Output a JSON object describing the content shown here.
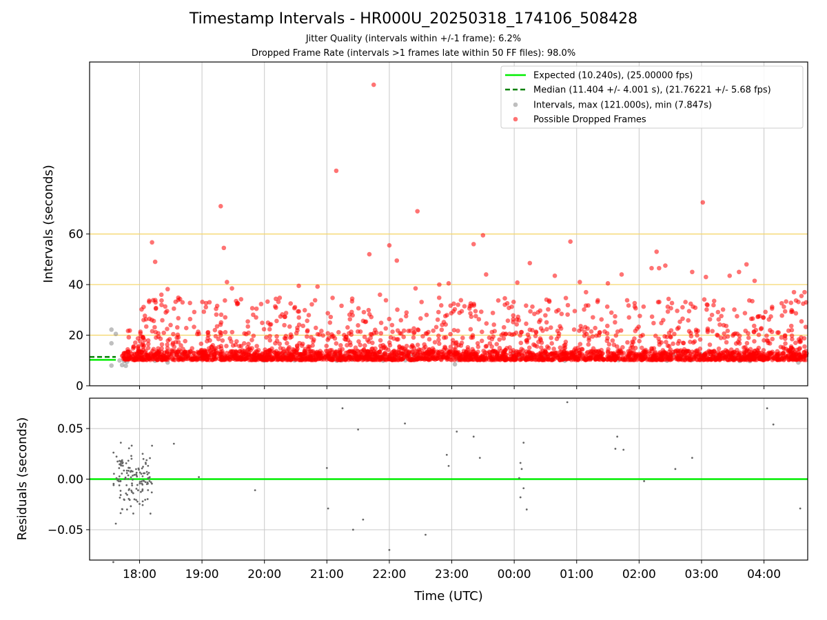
{
  "title": "Timestamp Intervals - HR000U_20250318_174106_508428",
  "subtitle_1": "Jitter Quality (intervals within +/-1 frame): 6.2%",
  "subtitle_2": "Dropped Frame Rate (intervals >1 frames late within 50 FF files): 98.0%",
  "colors": {
    "expected": "#00ee00",
    "median": "#008000",
    "intervals": "#808080",
    "dropped": "#ff0000",
    "threshold": "#f5d76e",
    "grid": "#c8c8c8"
  },
  "chart_data": [
    {
      "type": "scatter",
      "title": "",
      "xlabel": "",
      "ylabel": "Intervals (seconds)",
      "x_unit": "hours since 17:00 UTC on 2025-03-18",
      "xlim": [
        0.2,
        11.7
      ],
      "ylim": [
        0,
        128
      ],
      "yticks": [
        0,
        20,
        40,
        60
      ],
      "ytick_labels": [
        "0",
        "20",
        "40",
        "60"
      ],
      "xticks": [
        1,
        2,
        3,
        4,
        5,
        6,
        7,
        8,
        9,
        10,
        11
      ],
      "grid": true,
      "threshold_lines_y": [
        20,
        40,
        60
      ],
      "legend_position": "top-right",
      "legend": [
        "Expected (10.240s), (25.00000 fps)",
        "Median (11.404 +/- 4.001 s), (21.76221 +/- 5.68 fps)",
        "Intervals, max (121.000s), min (7.847s)",
        "Possible Dropped Frames"
      ],
      "expected_line": {
        "name": "Expected (10.240s), (25.00000 fps)",
        "y": 10.24,
        "x": [
          0.2,
          0.62
        ]
      },
      "median_line": {
        "name": "Median (11.404 +/- 4.001 s), (21.76221 +/- 5.68 fps)",
        "y": 11.404,
        "x": [
          0.2,
          0.62
        ]
      },
      "series": [
        {
          "name": "Intervals, max (121.000s), min (7.847s)",
          "style": "gray-dots",
          "points": [
            [
              0.55,
              22.2
            ],
            [
              0.55,
              16.8
            ],
            [
              0.55,
              8.0
            ],
            [
              0.62,
              20.5
            ],
            [
              0.68,
              10.0
            ],
            [
              0.72,
              8.2
            ],
            [
              0.78,
              7.9
            ],
            [
              0.8,
              9.5
            ],
            [
              1.45,
              9.2
            ],
            [
              6.05,
              8.5
            ],
            [
              11.55,
              9.2
            ],
            [
              3.0,
              10.1
            ],
            [
              6.5,
              10.3
            ]
          ]
        },
        {
          "name": "Possible Dropped Frames",
          "style": "red-dots",
          "points": [
            [
              1.2,
              56.7
            ],
            [
              1.25,
              49.0
            ],
            [
              1.35,
              36.0
            ],
            [
              1.45,
              38.2
            ],
            [
              1.42,
              29.0
            ],
            [
              1.55,
              30.5
            ],
            [
              2.3,
              71.0
            ],
            [
              2.35,
              54.5
            ],
            [
              2.4,
              41.0
            ],
            [
              2.48,
              38.5
            ],
            [
              3.55,
              39.5
            ],
            [
              4.15,
              85.0
            ],
            [
              3.85,
              39.2
            ],
            [
              4.75,
              119.0
            ],
            [
              4.68,
              52.0
            ],
            [
              4.85,
              36.0
            ],
            [
              5.0,
              55.5
            ],
            [
              5.12,
              49.5
            ],
            [
              5.42,
              38.5
            ],
            [
              5.45,
              69.0
            ],
            [
              5.95,
              40.5
            ],
            [
              5.8,
              40.0
            ],
            [
              6.35,
              56.0
            ],
            [
              6.5,
              59.5
            ],
            [
              6.55,
              44.0
            ],
            [
              7.05,
              40.8
            ],
            [
              7.25,
              48.5
            ],
            [
              7.65,
              43.5
            ],
            [
              7.9,
              57.0
            ],
            [
              8.05,
              41.0
            ],
            [
              8.15,
              37.0
            ],
            [
              8.5,
              40.5
            ],
            [
              8.72,
              44.0
            ],
            [
              9.2,
              46.5
            ],
            [
              9.28,
              53.0
            ],
            [
              9.32,
              46.5
            ],
            [
              9.42,
              47.5
            ],
            [
              9.85,
              45.0
            ],
            [
              10.02,
              72.5
            ],
            [
              10.07,
              43.0
            ],
            [
              10.45,
              43.5
            ],
            [
              10.6,
              45.0
            ],
            [
              10.72,
              48.0
            ],
            [
              10.85,
              41.5
            ],
            [
              11.48,
              37.0
            ],
            [
              11.6,
              35.5
            ],
            [
              11.65,
              37.0
            ]
          ],
          "bulk_description": "approximately 3000 additional points concentrated at 10-14 s with scatter up to about 35 s across the full time range"
        }
      ]
    },
    {
      "type": "scatter",
      "title": "",
      "xlabel": "Time (UTC)",
      "ylabel": "Residuals (seconds)",
      "xlim": [
        0.2,
        11.7
      ],
      "ylim": [
        -0.08,
        0.08
      ],
      "yticks": [
        -0.05,
        0.0,
        0.05
      ],
      "ytick_labels": [
        "−0.05",
        "0.00",
        "0.05"
      ],
      "xticks": [
        1,
        2,
        3,
        4,
        5,
        6,
        7,
        8,
        9,
        10,
        11
      ],
      "xtick_labels": [
        "18:00",
        "19:00",
        "20:00",
        "21:00",
        "22:00",
        "23:00",
        "00:00",
        "01:00",
        "02:00",
        "03:00",
        "04:00"
      ],
      "grid": true,
      "zero_line_y": 0,
      "series": [
        {
          "name": "",
          "style": "small-gray-dots",
          "points": [
            [
              0.75,
              -0.02
            ],
            [
              0.62,
              -0.044
            ],
            [
              0.7,
              0.036
            ],
            [
              1.55,
              0.035
            ],
            [
              1.2,
              0.033
            ],
            [
              1.95,
              0.002
            ],
            [
              2.85,
              -0.011
            ],
            [
              4.0,
              0.011
            ],
            [
              4.02,
              -0.029
            ],
            [
              4.25,
              0.07
            ],
            [
              4.42,
              -0.05
            ],
            [
              4.5,
              0.049
            ],
            [
              4.58,
              -0.04
            ],
            [
              5.0,
              -0.07
            ],
            [
              5.25,
              0.055
            ],
            [
              5.58,
              -0.055
            ],
            [
              5.92,
              0.024
            ],
            [
              5.95,
              0.013
            ],
            [
              6.08,
              0.047
            ],
            [
              6.35,
              0.042
            ],
            [
              6.45,
              0.021
            ],
            [
              7.1,
              0.016
            ],
            [
              7.12,
              0.01
            ],
            [
              7.15,
              0.036
            ],
            [
              7.15,
              -0.009
            ],
            [
              7.1,
              -0.018
            ],
            [
              7.2,
              -0.03
            ],
            [
              7.08,
              0.001
            ],
            [
              7.85,
              0.076
            ],
            [
              8.65,
              0.042
            ],
            [
              8.62,
              0.03
            ],
            [
              8.75,
              0.029
            ],
            [
              9.08,
              -0.002
            ],
            [
              9.58,
              0.01
            ],
            [
              9.85,
              0.021
            ],
            [
              11.05,
              0.07
            ],
            [
              11.15,
              0.054
            ],
            [
              11.58,
              -0.029
            ],
            [
              0.58,
              -0.082
            ],
            [
              0.95,
              0.004
            ],
            [
              0.9,
              -0.034
            ],
            [
              0.8,
              -0.03
            ],
            [
              0.68,
              0.018
            ],
            [
              1.05,
              0.025
            ],
            [
              1.1,
              0.015
            ]
          ],
          "cluster_description": "dense cluster of about 120 points between 17:45 and 18:15 UTC with residuals from -0.04 to 0.036"
        }
      ]
    }
  ]
}
